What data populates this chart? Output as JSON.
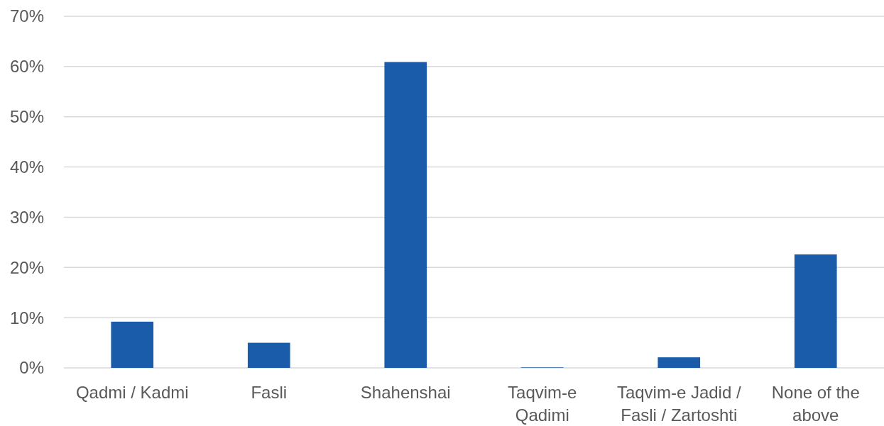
{
  "chart_data": {
    "type": "bar",
    "categories": [
      "Qadmi / Kadmi",
      "Fasli",
      "Shahenshai",
      "Taqvim-e Qadimi",
      "Taqvim-e Jadid / Fasli / Zartoshti",
      "None of the above"
    ],
    "values": [
      9.2,
      5.0,
      60.9,
      0.1,
      2.1,
      22.6
    ],
    "color": "#1a5ca9",
    "ylim": [
      0,
      70
    ],
    "yticks": [
      {
        "value": 0,
        "label": "0%"
      },
      {
        "value": 10,
        "label": "10%"
      },
      {
        "value": 20,
        "label": "20%"
      },
      {
        "value": 30,
        "label": "30%"
      },
      {
        "value": 40,
        "label": "40%"
      },
      {
        "value": 50,
        "label": "50%"
      },
      {
        "value": 60,
        "label": "60%"
      },
      {
        "value": 70,
        "label": "70%"
      }
    ],
    "grid": "y"
  }
}
